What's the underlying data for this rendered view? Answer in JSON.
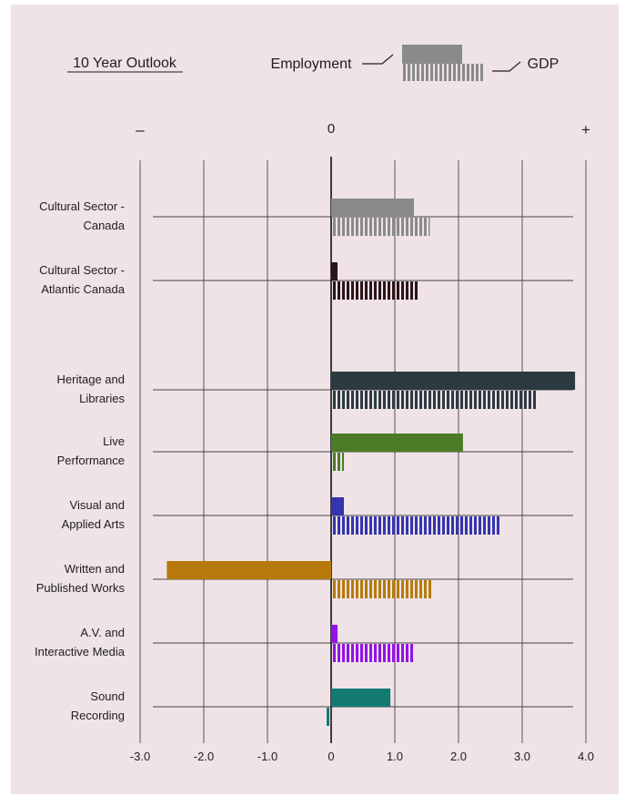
{
  "chart_data": {
    "type": "bar",
    "title": "10 Year Outlook",
    "legend": {
      "employment_label": "Employment",
      "gdp_label": "GDP",
      "placement": "top-right"
    },
    "direction_labels": {
      "negative": "–",
      "zero": "0",
      "positive": "+"
    },
    "x_ticks": [
      "-3.0",
      "-2.0",
      "-1.0",
      "0",
      "1.0",
      "2.0",
      "3.0",
      "4.0"
    ],
    "xlim": [
      -3.0,
      4.0
    ],
    "grid": true,
    "categories": [
      {
        "label_lines": [
          "Cultural Sector -",
          "Canada"
        ],
        "employment": 1.3,
        "gdp": 1.55,
        "color": "#8a8a8a"
      },
      {
        "label_lines": [
          "Cultural Sector -",
          "Atlantic Canada"
        ],
        "employment": 0.1,
        "gdp": 1.37,
        "color": "#2b1519"
      },
      {
        "label_lines": [
          "Heritage and",
          "Libraries"
        ],
        "employment": 3.83,
        "gdp": 3.25,
        "color": "#2d3a42"
      },
      {
        "label_lines": [
          "Live",
          "Performance"
        ],
        "employment": 2.07,
        "gdp": 0.2,
        "color": "#4a7c26"
      },
      {
        "label_lines": [
          "Visual and",
          "Applied Arts"
        ],
        "employment": 0.2,
        "gdp": 2.67,
        "color": "#3434b0"
      },
      {
        "label_lines": [
          "Written and",
          "Published Works"
        ],
        "employment": -2.58,
        "gdp": 1.6,
        "color": "#b77a0a"
      },
      {
        "label_lines": [
          "A.V. and",
          "Interactive Media"
        ],
        "employment": 0.1,
        "gdp": 1.3,
        "color": "#9412e8"
      },
      {
        "label_lines": [
          "Sound",
          "Recording"
        ],
        "employment": 0.93,
        "gdp": -0.1,
        "color": "#137a72"
      }
    ]
  }
}
